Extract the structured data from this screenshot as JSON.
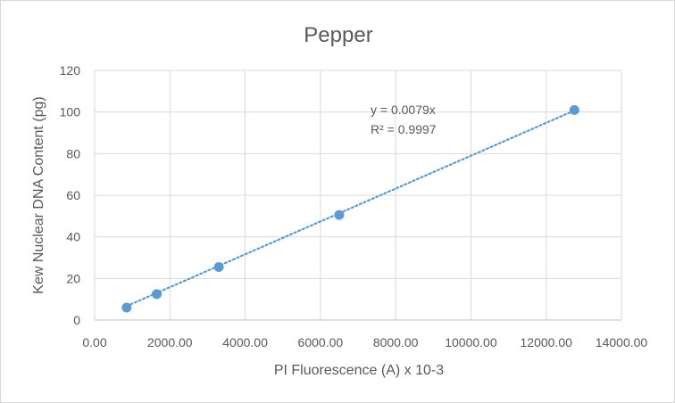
{
  "chart_data": {
    "type": "scatter",
    "title": "Pepper",
    "xlabel": "PI Fluorescence (A) x 10-3",
    "ylabel": "Kew Nuclear DNA Content (pg)",
    "xlim": [
      0,
      14000
    ],
    "ylim": [
      0,
      120
    ],
    "xticks": [
      0,
      2000,
      4000,
      6000,
      8000,
      10000,
      12000,
      14000
    ],
    "xtick_labels": [
      "0.00",
      "2000.00",
      "4000.00",
      "6000.00",
      "8000.00",
      "10000.00",
      "12000.00",
      "14000.00"
    ],
    "yticks": [
      0,
      20,
      40,
      60,
      80,
      100,
      120
    ],
    "ytick_labels": [
      "0",
      "20",
      "40",
      "60",
      "80",
      "100",
      "120"
    ],
    "grid": "horizontal",
    "series": [
      {
        "x": [
          850,
          1650,
          3300,
          6500,
          12750
        ],
        "y": [
          6,
          12.5,
          25.5,
          50.5,
          101
        ],
        "color": "#5b9bd5"
      }
    ],
    "trendline": {
      "type": "linear",
      "slope": 0.0079,
      "x_range": [
        850,
        12750
      ],
      "style": "dotted",
      "color": "#5b9bd5"
    },
    "annotations": [
      "y = 0.0079x",
      "R² = 0.9997"
    ]
  }
}
